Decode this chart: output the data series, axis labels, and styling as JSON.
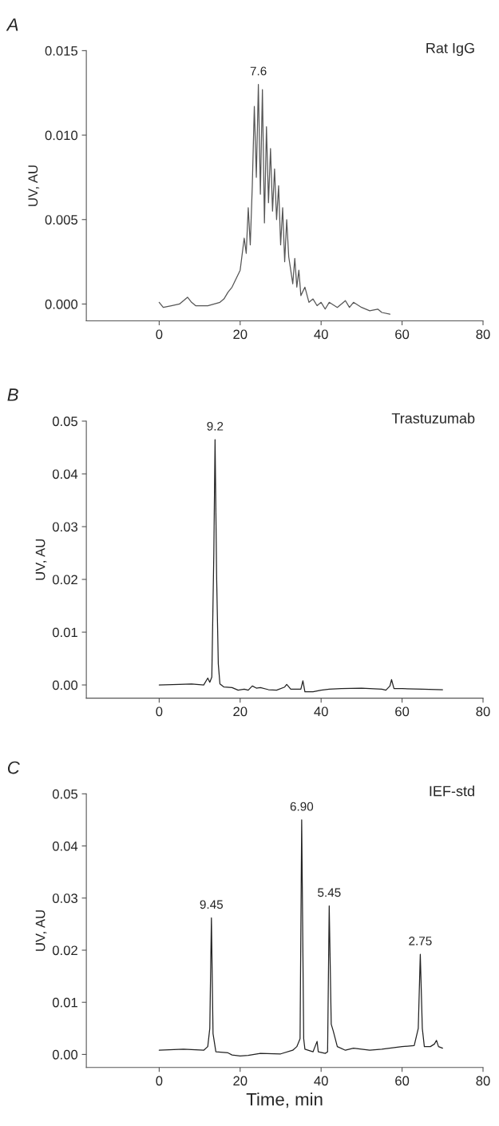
{
  "chart_data": [
    {
      "type": "line",
      "title": "A",
      "ylabel": "UV, AU",
      "xlim": [
        -18,
        80
      ],
      "xticks": [
        0,
        20,
        40,
        60,
        80
      ],
      "ylim": [
        -0.001,
        0.015
      ],
      "yticks": [
        {
          "value": 0,
          "label": "0.000"
        },
        {
          "value": 0.005,
          "label": "0.005"
        },
        {
          "value": 0.01,
          "label": "0.010"
        },
        {
          "value": 0.015,
          "label": "0.015"
        }
      ],
      "grid": false,
      "legend": false,
      "x": [
        0,
        1,
        3,
        5,
        7,
        8,
        9,
        12,
        15,
        16,
        17,
        18,
        19,
        20,
        21,
        21.5,
        22,
        22.5,
        23,
        23.5,
        24,
        24.5,
        25,
        25.5,
        26,
        26.5,
        27,
        27.5,
        28,
        28.5,
        29,
        29.5,
        30,
        30.5,
        31,
        31.5,
        32,
        32.5,
        33,
        33.5,
        34,
        34.5,
        35,
        36,
        37,
        38,
        39,
        40,
        41,
        42,
        44,
        46,
        47,
        48,
        50,
        52,
        54,
        55,
        57
      ],
      "series": [
        {
          "color": "#555555",
          "values": [
            0.0001,
            -0.0002,
            -0.0001,
            0.0,
            0.0004,
            0.0001,
            -0.0001,
            -0.0001,
            0.0001,
            0.0003,
            0.0007,
            0.001,
            0.0015,
            0.002,
            0.0039,
            0.003,
            0.0057,
            0.0035,
            0.007,
            0.0117,
            0.0075,
            0.013,
            0.0065,
            0.0127,
            0.0048,
            0.0105,
            0.006,
            0.0092,
            0.0055,
            0.008,
            0.005,
            0.007,
            0.0035,
            0.0057,
            0.0025,
            0.005,
            0.0028,
            0.002,
            0.0012,
            0.0027,
            0.001,
            0.002,
            0.0005,
            0.001,
            0.0001,
            0.0003,
            -0.0001,
            0.0001,
            -0.0003,
            0.0001,
            -0.0002,
            0.0002,
            -0.0002,
            0.0001,
            -0.0002,
            -0.0004,
            -0.0003,
            -0.0005,
            -0.0006
          ]
        }
      ],
      "annotations": [
        {
          "text": "7.6",
          "x": 24.5,
          "y": 0.013
        },
        "Rat IgG"
      ]
    },
    {
      "type": "line",
      "title": "B",
      "ylabel": "UV, AU",
      "xlim": [
        -18,
        80
      ],
      "xticks": [
        0,
        20,
        40,
        60,
        80
      ],
      "ylim": [
        -0.0025,
        0.05
      ],
      "yticks": [
        {
          "value": 0,
          "label": "0.00"
        },
        {
          "value": 0.01,
          "label": "0.01"
        },
        {
          "value": 0.02,
          "label": "0.02"
        },
        {
          "value": 0.03,
          "label": "0.03"
        },
        {
          "value": 0.04,
          "label": "0.04"
        },
        {
          "value": 0.05,
          "label": "0.05"
        }
      ],
      "grid": false,
      "legend": false,
      "x": [
        0,
        5,
        8,
        11,
        12,
        12.5,
        13,
        13.5,
        13.8,
        14.2,
        14.6,
        15,
        16,
        18,
        19.5,
        21,
        22,
        23,
        24,
        25,
        27,
        29,
        31,
        31.5,
        32.5,
        35,
        35.5,
        36,
        38,
        40,
        42,
        45,
        50,
        55,
        56,
        57,
        57.4,
        58,
        60,
        65,
        70
      ],
      "series": [
        {
          "color": "#222222",
          "values": [
            0.0,
            0.0001,
            0.0002,
            0.0,
            0.0013,
            0.0005,
            0.0015,
            0.025,
            0.0465,
            0.02,
            0.004,
            0.0002,
            -0.0004,
            -0.0005,
            -0.001,
            -0.0008,
            -0.001,
            -0.0002,
            -0.0006,
            -0.0005,
            -0.0009,
            -0.001,
            -0.0004,
            0.0001,
            -0.0008,
            -0.0008,
            0.0008,
            -0.0013,
            -0.0013,
            -0.001,
            -0.0008,
            -0.0007,
            -0.0006,
            -0.0008,
            -0.001,
            -0.0002,
            0.001,
            -0.0007,
            -0.0007,
            -0.0008,
            -0.0009
          ]
        }
      ],
      "annotations": [
        {
          "text": "9.2",
          "x": 13.8,
          "y": 0.0465
        },
        "Trastuzumab"
      ]
    },
    {
      "type": "line",
      "title": "C",
      "xlabel": "Time, min",
      "ylabel": "UV, AU",
      "xlim": [
        -18,
        80
      ],
      "xticks": [
        0,
        20,
        40,
        60,
        80
      ],
      "ylim": [
        -0.0025,
        0.05
      ],
      "yticks": [
        {
          "value": 0,
          "label": "0.00"
        },
        {
          "value": 0.01,
          "label": "0.01"
        },
        {
          "value": 0.02,
          "label": "0.02"
        },
        {
          "value": 0.03,
          "label": "0.03"
        },
        {
          "value": 0.04,
          "label": "0.04"
        },
        {
          "value": 0.05,
          "label": "0.05"
        }
      ],
      "grid": false,
      "legend": false,
      "x": [
        0,
        6,
        11,
        12,
        12.5,
        12.9,
        13.3,
        14,
        17,
        18,
        20,
        22,
        25,
        30,
        33,
        34,
        34.8,
        35.2,
        35.7,
        36,
        38,
        39,
        39.3,
        41,
        41.6,
        42,
        42.5,
        43,
        43.5,
        44,
        46,
        48,
        52,
        55,
        60,
        63,
        64,
        64.5,
        65,
        65.5,
        67,
        68,
        68.5,
        69,
        70
      ],
      "series": [
        {
          "color": "#222222",
          "values": [
            0.0008,
            0.001,
            0.0008,
            0.0015,
            0.005,
            0.0262,
            0.004,
            0.0005,
            0.0003,
            -0.0001,
            -0.0003,
            -0.0002,
            0.0002,
            0.0001,
            0.0008,
            0.0015,
            0.003,
            0.045,
            0.003,
            0.001,
            0.0005,
            0.0025,
            0.0005,
            0.0002,
            0.0005,
            0.0285,
            0.0058,
            0.0045,
            0.003,
            0.0015,
            0.0008,
            0.0012,
            0.0008,
            0.001,
            0.0015,
            0.0017,
            0.005,
            0.0192,
            0.005,
            0.0015,
            0.0015,
            0.002,
            0.0027,
            0.0015,
            0.0012
          ]
        }
      ],
      "annotations": [
        {
          "text": "9.45",
          "x": 12.9,
          "y": 0.0262
        },
        {
          "text": "6.90",
          "x": 35.2,
          "y": 0.045
        },
        {
          "text": "5.45",
          "x": 42,
          "y": 0.0285
        },
        {
          "text": "2.75",
          "x": 64.5,
          "y": 0.0192
        },
        "IEF-std"
      ]
    }
  ]
}
